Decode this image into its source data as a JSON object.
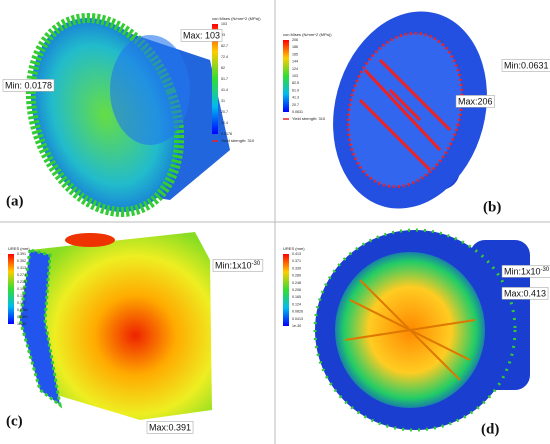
{
  "panels": [
    {
      "label": "(a)",
      "max": "Max: 103",
      "min": "Min: 0.0178",
      "legend": {
        "title": "von Mises (N/mm^2 (MPa))",
        "ticks": [
          "103",
          "93",
          "82.7",
          "72.4",
          "62",
          "51.7",
          "41.4",
          "31",
          "20.7",
          "10.4",
          "0.0178"
        ],
        "note": "Yield strength: 310"
      }
    },
    {
      "label": "(b)",
      "max": "Max:206",
      "min": "Min:0.0631",
      "legend": {
        "title": "von Mises (N/mm^2 (MPa))",
        "ticks": [
          "206",
          "186",
          "165",
          "144",
          "124",
          "103",
          "82.5",
          "61.9",
          "41.3",
          "20.7",
          "0.0631"
        ],
        "note": "Yield strength: 310"
      }
    },
    {
      "label": "(c)",
      "max": "Max:0.391",
      "min": "Min:1x10",
      "min_sup": "-30",
      "legend": {
        "title": "URES (mm)",
        "ticks": [
          "0.391",
          "0.352",
          "0.313",
          "0.274",
          "0.235",
          "0.196",
          "0.157",
          "0.117",
          "0.0782",
          "0.0391",
          "1e-30"
        ]
      }
    },
    {
      "label": "(d)",
      "max": "Max:0.413",
      "min": "Min:1x10",
      "min_sup": "-30",
      "legend": {
        "title": "URES (mm)",
        "ticks": [
          "0.413",
          "0.371",
          "0.330",
          "0.289",
          "0.248",
          "0.206",
          "0.165",
          "0.124",
          "0.0826",
          "0.0413",
          "1e-30"
        ]
      }
    }
  ]
}
